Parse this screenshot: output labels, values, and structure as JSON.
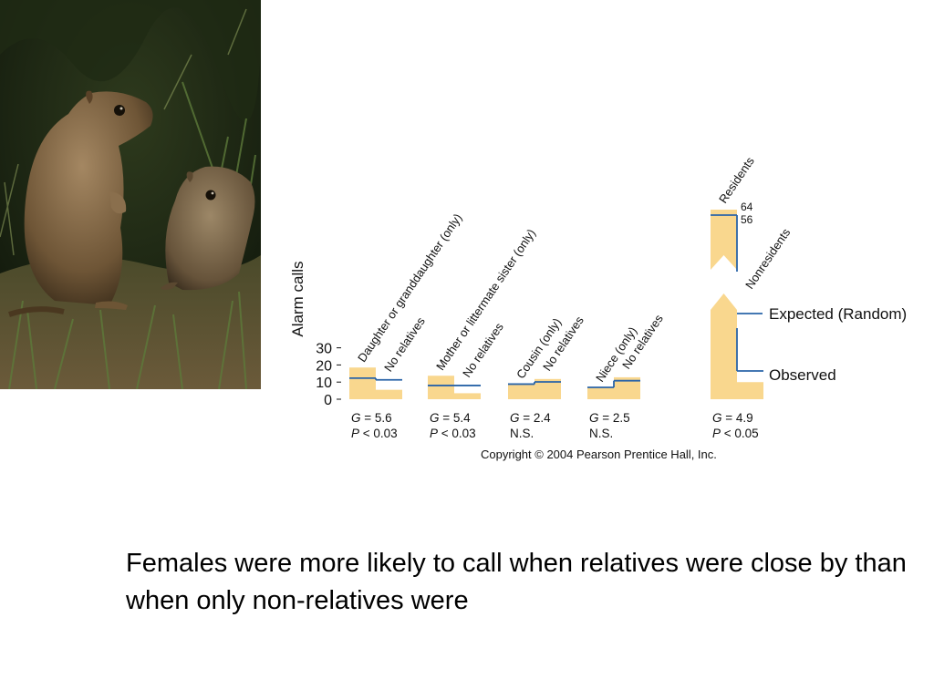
{
  "caption": "Females were more likely to call when relatives were close by than when only non-relatives were",
  "photo": {
    "subject": "ground-squirrels-photo"
  },
  "chart_data": {
    "type": "bar",
    "title": "",
    "xlabel": "",
    "ylabel": "Alarm calls",
    "ylim": [
      0,
      30
    ],
    "yticks": [
      0,
      10,
      20,
      30
    ],
    "grid": false,
    "colors": {
      "observed": "#f9d78e",
      "expected": "#2a64a8"
    },
    "legend": {
      "expected": "Expected (Random)",
      "observed": "Observed",
      "placement": "right"
    },
    "copyright": "Copyright © 2004 Pearson Prentice Hall, Inc.",
    "groups": [
      {
        "bars": [
          {
            "label": "Daughter or granddaughter (only)",
            "observed": 18.5,
            "expected": 12.3
          },
          {
            "label": "No relatives",
            "observed": 5.5,
            "expected": 11.3
          }
        ],
        "stat1": {
          "label": "G",
          "value": "= 5.6"
        },
        "stat2": {
          "label": "P",
          "value": "< 0.03"
        }
      },
      {
        "bars": [
          {
            "label": "Mother or littermate sister (only)",
            "observed": 13.7,
            "expected": 8.0
          },
          {
            "label": "No relatives",
            "observed": 3.5,
            "expected": 8.0
          }
        ],
        "stat1": {
          "label": "G",
          "value": "= 5.4"
        },
        "stat2": {
          "label": "P",
          "value": "< 0.03"
        }
      },
      {
        "bars": [
          {
            "label": "Cousin (only)",
            "observed": 8.8,
            "expected": 8.8
          },
          {
            "label": "No relatives",
            "observed": 11.8,
            "expected": 10.1
          }
        ],
        "stat1": {
          "label": "G",
          "value": "= 2.4"
        },
        "stat2": {
          "label": "",
          "value": "N.S."
        }
      },
      {
        "bars": [
          {
            "label": "Niece (only)",
            "observed": 6.9,
            "expected": 6.9
          },
          {
            "label": "No relatives",
            "observed": 12.8,
            "expected": 10.8
          }
        ],
        "stat1": {
          "label": "G",
          "value": "= 2.5"
        },
        "stat2": {
          "label": "",
          "value": "N.S."
        }
      },
      {
        "bars": [
          {
            "label": "Residents",
            "observed": 64,
            "expected": 56,
            "axis_break": true
          },
          {
            "label": "Nonresidents",
            "observed": 10,
            "expected": 16.5
          }
        ],
        "stat1": {
          "label": "G",
          "value": "= 4.9"
        },
        "stat2": {
          "label": "P",
          "value": "< 0.05"
        }
      }
    ]
  }
}
